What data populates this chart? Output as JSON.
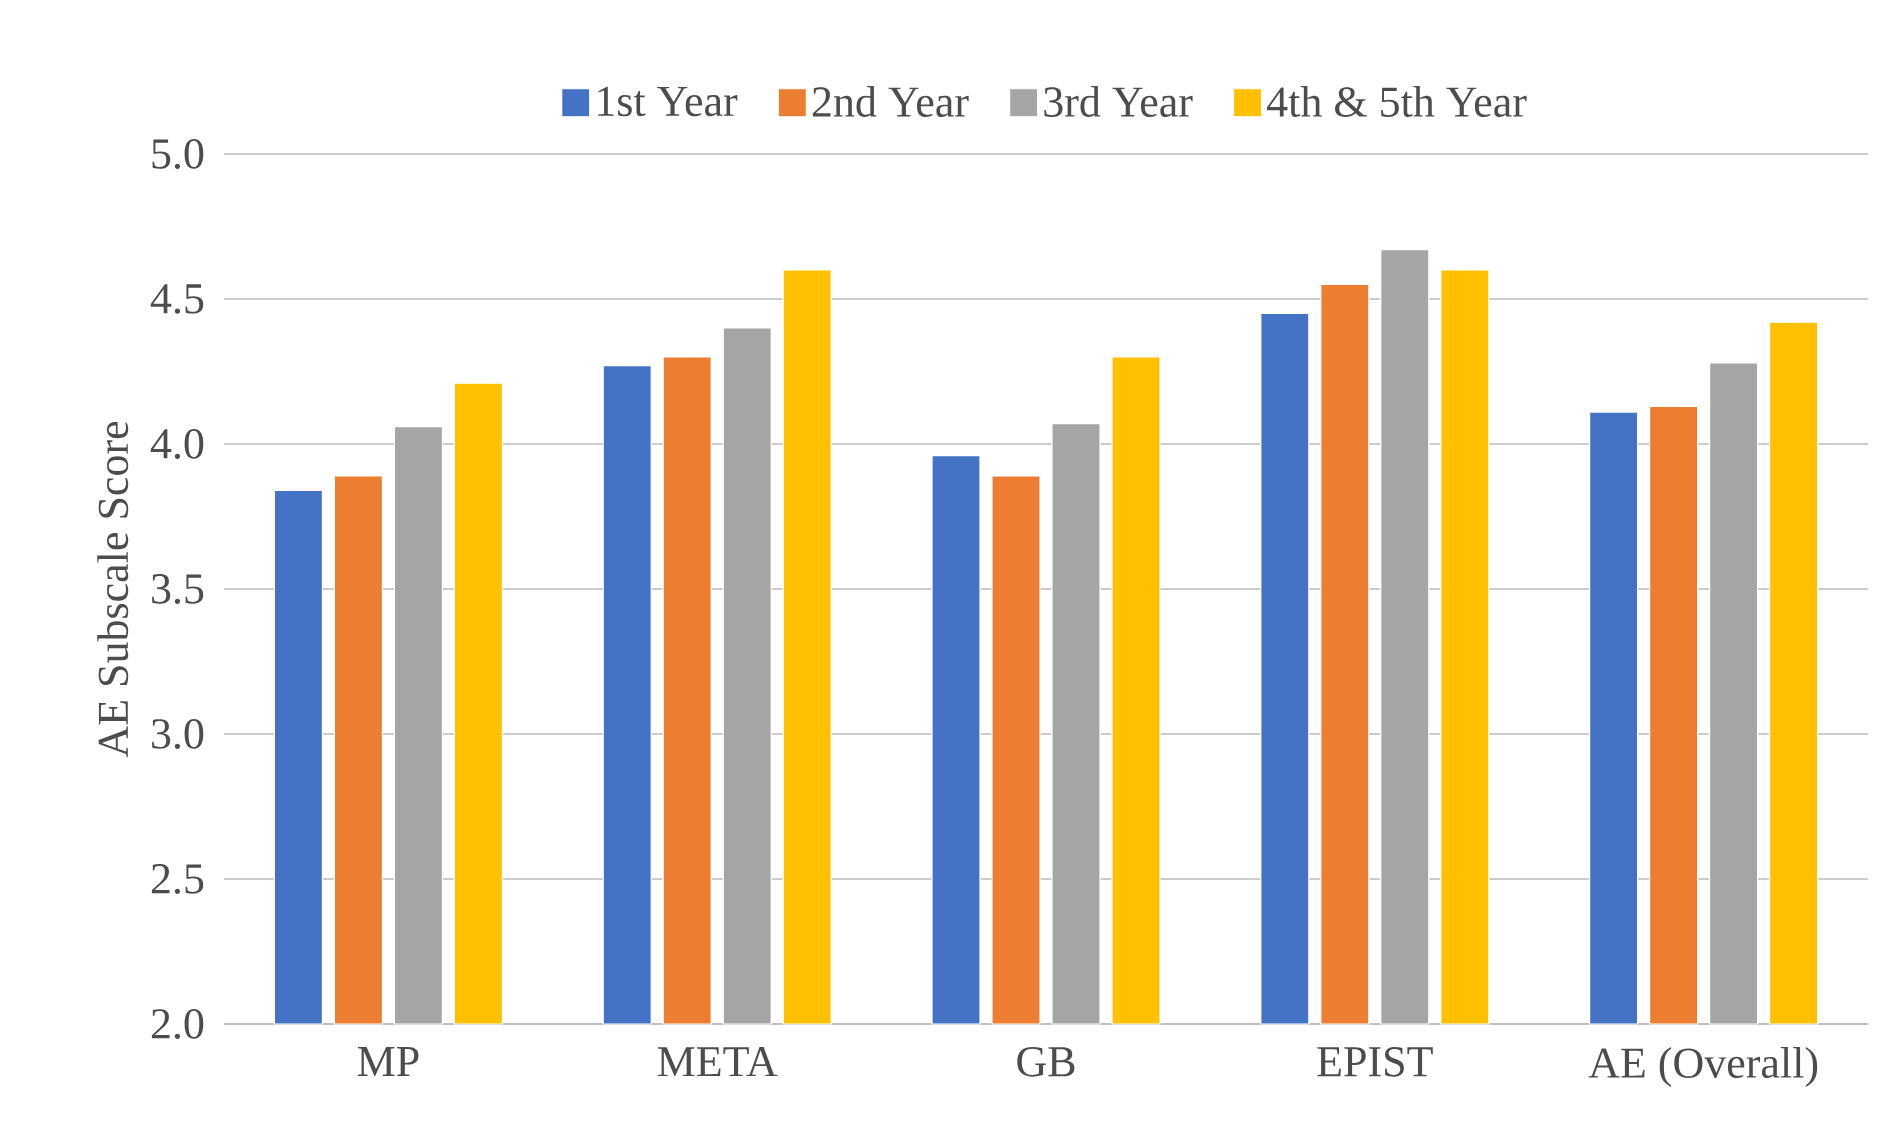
{
  "chart_data": {
    "type": "bar",
    "ylabel": "AE Subscale Score",
    "categories": [
      "MP",
      "META",
      "GB",
      "EPIST",
      "AE (Overall)"
    ],
    "series": [
      {
        "name": "1st Year",
        "color": "#4472c4",
        "values": [
          3.84,
          4.27,
          3.96,
          4.45,
          4.11
        ]
      },
      {
        "name": "2nd Year",
        "color": "#ed7d31",
        "values": [
          3.89,
          4.3,
          3.89,
          4.55,
          4.13
        ]
      },
      {
        "name": "3rd Year",
        "color": "#a5a5a5",
        "values": [
          4.06,
          4.4,
          4.07,
          4.67,
          4.28
        ]
      },
      {
        "name": "4th & 5th Year",
        "color": "#ffc000",
        "values": [
          4.21,
          4.6,
          4.3,
          4.6,
          4.42
        ]
      }
    ],
    "ylim": [
      2.0,
      5.0
    ],
    "yticks": [
      {
        "value": 2.0,
        "label": "2.0"
      },
      {
        "value": 2.5,
        "label": "2.5"
      },
      {
        "value": 3.0,
        "label": "3.0"
      },
      {
        "value": 3.5,
        "label": "3.5"
      },
      {
        "value": 4.0,
        "label": "4.0"
      },
      {
        "value": 4.5,
        "label": "4.5"
      },
      {
        "value": 5.0,
        "label": "5.0"
      }
    ],
    "grid": "y",
    "legend": "top"
  }
}
